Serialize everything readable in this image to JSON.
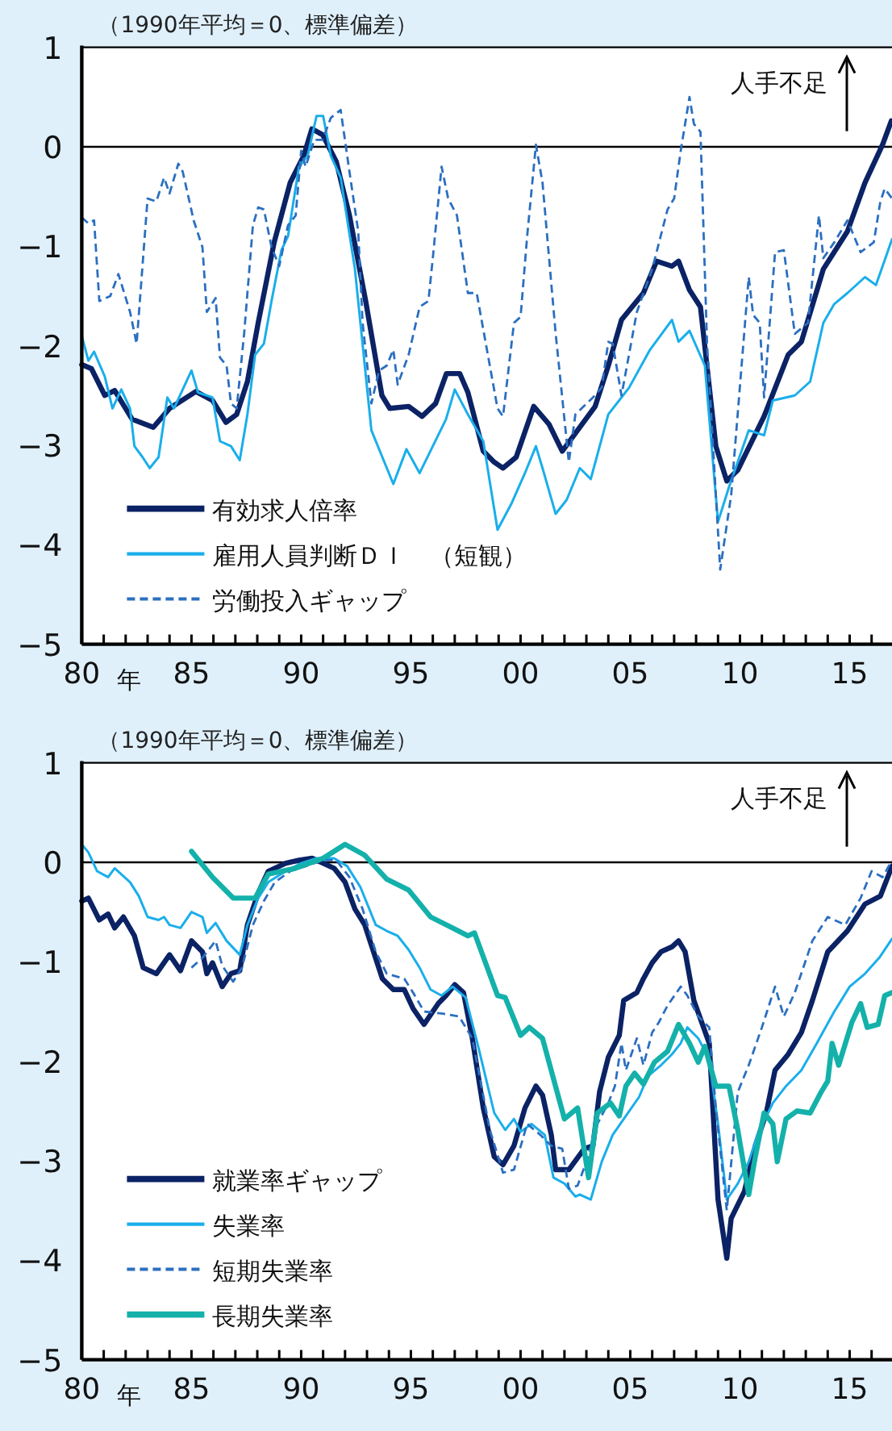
{
  "chart_data": [
    {
      "type": "line",
      "subtitle": "（1990年平均＝0、標準偏差）",
      "xlabel": "年",
      "xlim": [
        1980,
        2016.93
      ],
      "ylim": [
        -5,
        1
      ],
      "yticks": [
        -5,
        -4,
        -3,
        -2,
        -1,
        0,
        1
      ],
      "xticks": [
        {
          "value": 1980,
          "label": "80"
        },
        {
          "value": 1981,
          "label": null
        },
        {
          "value": 1982,
          "label": null
        },
        {
          "value": 1983,
          "label": null
        },
        {
          "value": 1984,
          "label": null
        },
        {
          "value": 1985,
          "label": "85"
        },
        {
          "value": 1986,
          "label": null
        },
        {
          "value": 1987,
          "label": null
        },
        {
          "value": 1988,
          "label": null
        },
        {
          "value": 1989,
          "label": null
        },
        {
          "value": 1990,
          "label": "90"
        },
        {
          "value": 1991,
          "label": null
        },
        {
          "value": 1992,
          "label": null
        },
        {
          "value": 1993,
          "label": null
        },
        {
          "value": 1994,
          "label": null
        },
        {
          "value": 1995,
          "label": "95"
        },
        {
          "value": 1996,
          "label": null
        },
        {
          "value": 1997,
          "label": null
        },
        {
          "value": 1998,
          "label": null
        },
        {
          "value": 1999,
          "label": null
        },
        {
          "value": 2000,
          "label": "00"
        },
        {
          "value": 2001,
          "label": null
        },
        {
          "value": 2002,
          "label": null
        },
        {
          "value": 2003,
          "label": null
        },
        {
          "value": 2004,
          "label": null
        },
        {
          "value": 2005,
          "label": "05"
        },
        {
          "value": 2006,
          "label": null
        },
        {
          "value": 2007,
          "label": null
        },
        {
          "value": 2008,
          "label": null
        },
        {
          "value": 2009,
          "label": null
        },
        {
          "value": 2010,
          "label": "10"
        },
        {
          "value": 2011,
          "label": null
        },
        {
          "value": 2012,
          "label": null
        },
        {
          "value": 2013,
          "label": null
        },
        {
          "value": 2014,
          "label": null
        },
        {
          "value": 2015,
          "label": "15"
        },
        {
          "value": 2016,
          "label": null
        }
      ],
      "grid": false,
      "legend": "bottom left",
      "ref_lines": [
        {
          "axis": "y",
          "value": 0,
          "color": "#000000"
        }
      ],
      "annotations": [
        "人手不足"
      ],
      "series": [
        {
          "name": "有効求人倍率",
          "color": "#0b2265",
          "line_style": "solid",
          "x": [
            1980.0,
            1980.44,
            1981.05,
            1981.5,
            1982.3,
            1983.26,
            1984.0,
            1985.2,
            1985.96,
            1986.57,
            1987.06,
            1987.55,
            1988.04,
            1988.77,
            1989.5,
            1990.12,
            1990.49,
            1990.98,
            1991.6,
            1992.2,
            1992.94,
            1993.68,
            1994.04,
            1994.9,
            1995.51,
            1996.13,
            1996.62,
            1997.23,
            1997.6,
            1998.3,
            1998.8,
            1999.2,
            1999.8,
            2000.6,
            2001.3,
            2001.9,
            2002.6,
            2003.4,
            2004.0,
            2004.6,
            2005.6,
            2006.2,
            2006.9,
            2007.2,
            2007.7,
            2008.2,
            2008.9,
            2009.4,
            2009.9,
            2011.1,
            2012.2,
            2012.8,
            2013.8,
            2014.9,
            2015.7,
            2016.5,
            2016.9
          ],
          "values": [
            -2.19,
            -2.23,
            -2.5,
            -2.45,
            -2.74,
            -2.82,
            -2.63,
            -2.46,
            -2.55,
            -2.77,
            -2.69,
            -2.36,
            -1.77,
            -0.96,
            -0.36,
            -0.09,
            0.18,
            0.12,
            -0.15,
            -0.69,
            -1.55,
            -2.5,
            -2.63,
            -2.61,
            -2.71,
            -2.58,
            -2.28,
            -2.28,
            -2.47,
            -3.06,
            -3.17,
            -3.23,
            -3.12,
            -2.61,
            -2.79,
            -3.06,
            -2.85,
            -2.61,
            -2.2,
            -1.74,
            -1.47,
            -1.15,
            -1.2,
            -1.15,
            -1.44,
            -1.61,
            -3.01,
            -3.36,
            -3.25,
            -2.71,
            -2.09,
            -1.96,
            -1.23,
            -0.85,
            -0.36,
            0.02,
            0.26
          ]
        },
        {
          "name": "雇用人員判断ＤＩ　（短観）",
          "color": "#1aaeea",
          "line_style": "solid",
          "x": [
            1980,
            1980.3,
            1980.56,
            1981.05,
            1981.4,
            1981.8,
            1982.2,
            1982.4,
            1982.77,
            1983.1,
            1983.5,
            1983.9,
            1984.2,
            1985.0,
            1985.3,
            1985.96,
            1986.3,
            1986.8,
            1987.2,
            1987.55,
            1987.9,
            1988.3,
            1988.65,
            1989.1,
            1989.4,
            1989.9,
            1990.3,
            1990.7,
            1991.0,
            1991.35,
            1991.8,
            1992.45,
            1993.2,
            1993.7,
            1994.2,
            1994.8,
            1995.4,
            1996.0,
            1996.6,
            1997.0,
            1997.6,
            1998.3,
            1998.95,
            1999.6,
            2000.2,
            2000.7,
            2001.0,
            2001.6,
            2002.1,
            2002.7,
            2003.2,
            2004.0,
            2004.95,
            2005.9,
            2006.9,
            2007.2,
            2007.7,
            2008.4,
            2009.0,
            2009.5,
            2010.4,
            2011.1,
            2011.5,
            2012.5,
            2013.2,
            2013.8,
            2014.3,
            2014.9,
            2015.7,
            2016.2,
            2016.93
          ],
          "values": [
            -1.9,
            -2.15,
            -2.06,
            -2.31,
            -2.63,
            -2.44,
            -2.63,
            -3.01,
            -3.12,
            -3.23,
            -3.12,
            -2.52,
            -2.63,
            -2.25,
            -2.47,
            -2.52,
            -2.96,
            -3.01,
            -3.15,
            -2.69,
            -2.09,
            -1.98,
            -1.55,
            -1.04,
            -0.9,
            -0.2,
            -0.09,
            0.31,
            0.31,
            -0.09,
            -0.31,
            -1.23,
            -2.85,
            -3.12,
            -3.39,
            -3.04,
            -3.28,
            -3.01,
            -2.74,
            -2.44,
            -2.69,
            -2.96,
            -3.85,
            -3.58,
            -3.28,
            -3.01,
            -3.23,
            -3.69,
            -3.55,
            -3.23,
            -3.34,
            -2.69,
            -2.42,
            -2.04,
            -1.74,
            -1.96,
            -1.85,
            -2.2,
            -3.77,
            -3.42,
            -2.85,
            -2.9,
            -2.55,
            -2.5,
            -2.36,
            -1.77,
            -1.58,
            -1.47,
            -1.31,
            -1.39,
            -0.93
          ]
        },
        {
          "name": "労働投入ギャップ",
          "color": "#2b6fc0",
          "line_style": "dashed",
          "x": [
            1980,
            1980.3,
            1980.56,
            1980.8,
            1981.3,
            1981.67,
            1982.2,
            1982.5,
            1983.0,
            1983.4,
            1983.75,
            1984.0,
            1984.4,
            1984.6,
            1985.1,
            1985.5,
            1985.7,
            1986.1,
            1986.3,
            1986.6,
            1986.8,
            1987.06,
            1987.4,
            1987.8,
            1988.04,
            1988.3,
            1988.65,
            1989.0,
            1989.4,
            1989.75,
            1990.0,
            1990.2,
            1990.6,
            1990.98,
            1991.35,
            1991.8,
            1992.2,
            1992.6,
            1992.8,
            1993.2,
            1993.55,
            1993.9,
            1994.2,
            1994.4,
            1994.9,
            1995.4,
            1995.8,
            1996.0,
            1996.4,
            1996.7,
            1997.1,
            1997.6,
            1998.0,
            1998.95,
            1999.2,
            1999.7,
            2000.0,
            2000.3,
            2000.7,
            2001.0,
            2001.6,
            2002.2,
            2002.5,
            2003.3,
            2003.7,
            2004.0,
            2004.2,
            2004.6,
            2005.3,
            2006.0,
            2006.7,
            2007.0,
            2007.3,
            2007.7,
            2007.9,
            2008.2,
            2008.5,
            2009.1,
            2009.6,
            2010.4,
            2010.6,
            2010.9,
            2011.1,
            2011.6,
            2012.0,
            2012.5,
            2013.1,
            2013.6,
            2013.8,
            2014.3,
            2014.9,
            2015.5,
            2016.1,
            2016.4,
            2016.6,
            2016.93
          ],
          "values": [
            -0.71,
            -0.77,
            -0.74,
            -1.55,
            -1.5,
            -1.28,
            -1.66,
            -1.98,
            -0.52,
            -0.55,
            -0.31,
            -0.47,
            -0.17,
            -0.25,
            -0.74,
            -1.01,
            -1.66,
            -1.52,
            -2.12,
            -2.2,
            -2.58,
            -2.63,
            -1.88,
            -0.79,
            -0.61,
            -0.63,
            -1.01,
            -1.2,
            -0.79,
            -0.69,
            -0.04,
            -0.2,
            0.07,
            0.07,
            0.29,
            0.37,
            -0.25,
            -0.85,
            -1.77,
            -2.58,
            -2.25,
            -2.2,
            -2.04,
            -2.39,
            -2.09,
            -1.61,
            -1.55,
            -1.12,
            -0.2,
            -0.52,
            -0.69,
            -1.47,
            -1.47,
            -2.63,
            -2.71,
            -1.77,
            -1.71,
            -0.9,
            0.02,
            -0.36,
            -1.88,
            -3.17,
            -2.69,
            -2.52,
            -2.42,
            -1.96,
            -1.98,
            -2.5,
            -1.66,
            -1.23,
            -0.63,
            -0.52,
            -0.04,
            0.5,
            0.23,
            0.15,
            -1.98,
            -4.25,
            -3.5,
            -1.31,
            -1.69,
            -1.77,
            -2.52,
            -1.06,
            -1.04,
            -1.88,
            -1.77,
            -0.69,
            -1.12,
            -0.96,
            -0.74,
            -1.06,
            -0.96,
            -0.55,
            -0.42,
            -0.52
          ]
        }
      ]
    },
    {
      "type": "line",
      "subtitle": "（1990年平均＝0、標準偏差）",
      "xlabel": "年",
      "xlim": [
        1980,
        2016.93
      ],
      "ylim": [
        -5,
        1
      ],
      "yticks": [
        -5,
        -4,
        -3,
        -2,
        -1,
        0,
        1
      ],
      "xticks": [
        {
          "value": 1980,
          "label": "80"
        },
        {
          "value": 1981,
          "label": null
        },
        {
          "value": 1982,
          "label": null
        },
        {
          "value": 1983,
          "label": null
        },
        {
          "value": 1984,
          "label": null
        },
        {
          "value": 1985,
          "label": "85"
        },
        {
          "value": 1986,
          "label": null
        },
        {
          "value": 1987,
          "label": null
        },
        {
          "value": 1988,
          "label": null
        },
        {
          "value": 1989,
          "label": null
        },
        {
          "value": 1990,
          "label": "90"
        },
        {
          "value": 1991,
          "label": null
        },
        {
          "value": 1992,
          "label": null
        },
        {
          "value": 1993,
          "label": null
        },
        {
          "value": 1994,
          "label": null
        },
        {
          "value": 1995,
          "label": "95"
        },
        {
          "value": 1996,
          "label": null
        },
        {
          "value": 1997,
          "label": null
        },
        {
          "value": 1998,
          "label": null
        },
        {
          "value": 1999,
          "label": null
        },
        {
          "value": 2000,
          "label": "00"
        },
        {
          "value": 2001,
          "label": null
        },
        {
          "value": 2002,
          "label": null
        },
        {
          "value": 2003,
          "label": null
        },
        {
          "value": 2004,
          "label": null
        },
        {
          "value": 2005,
          "label": "05"
        },
        {
          "value": 2006,
          "label": null
        },
        {
          "value": 2007,
          "label": null
        },
        {
          "value": 2008,
          "label": null
        },
        {
          "value": 2009,
          "label": null
        },
        {
          "value": 2010,
          "label": "10"
        },
        {
          "value": 2011,
          "label": null
        },
        {
          "value": 2012,
          "label": null
        },
        {
          "value": 2013,
          "label": null
        },
        {
          "value": 2014,
          "label": null
        },
        {
          "value": 2015,
          "label": "15"
        },
        {
          "value": 2016,
          "label": null
        }
      ],
      "grid": false,
      "legend": "bottom left",
      "ref_lines": [
        {
          "axis": "y",
          "value": 0,
          "color": "#000000"
        }
      ],
      "annotations": [
        "人手不足"
      ],
      "series": [
        {
          "name": "就業率ギャップ",
          "color": "#0b2265",
          "line_style": "solid",
          "x": [
            1980,
            1980.3,
            1980.8,
            1981.2,
            1981.5,
            1981.9,
            1982.4,
            1982.8,
            1983.4,
            1984.0,
            1984.5,
            1985.0,
            1985.5,
            1985.7,
            1985.96,
            1986.4,
            1986.8,
            1987.2,
            1987.55,
            1988.04,
            1988.5,
            1989.3,
            1989.9,
            1990.5,
            1991.0,
            1991.5,
            1992.0,
            1992.45,
            1992.9,
            1993.3,
            1993.7,
            1994.2,
            1994.7,
            1995.1,
            1995.6,
            1996.25,
            1996.6,
            1997.0,
            1997.4,
            1997.8,
            1998.3,
            1998.8,
            1999.2,
            1999.7,
            2000.2,
            2000.7,
            2001.0,
            2001.4,
            2001.6,
            2002.2,
            2002.9,
            2003.3,
            2003.6,
            2004.0,
            2004.5,
            2004.7,
            2005.3,
            2005.6,
            2006.0,
            2006.4,
            2006.9,
            2007.2,
            2007.5,
            2007.9,
            2008.6,
            2009.0,
            2009.4,
            2009.6,
            2010.2,
            2010.7,
            2011.2,
            2011.6,
            2012.2,
            2012.8,
            2013.3,
            2014.0,
            2014.9,
            2015.7,
            2016.4,
            2016.93
          ],
          "values": [
            -0.39,
            -0.36,
            -0.58,
            -0.52,
            -0.66,
            -0.55,
            -0.74,
            -1.06,
            -1.12,
            -0.93,
            -1.09,
            -0.79,
            -0.9,
            -1.12,
            -1.01,
            -1.25,
            -1.12,
            -1.09,
            -0.63,
            -0.31,
            -0.09,
            -0.01,
            0.02,
            0.04,
            -0.01,
            -0.06,
            -0.2,
            -0.47,
            -0.63,
            -0.9,
            -1.17,
            -1.28,
            -1.28,
            -1.47,
            -1.63,
            -1.42,
            -1.34,
            -1.23,
            -1.31,
            -1.77,
            -2.47,
            -2.96,
            -3.04,
            -2.85,
            -2.47,
            -2.25,
            -2.34,
            -2.74,
            -3.09,
            -3.09,
            -2.88,
            -2.85,
            -2.31,
            -1.96,
            -1.74,
            -1.39,
            -1.31,
            -1.17,
            -1.01,
            -0.9,
            -0.85,
            -0.79,
            -0.9,
            -1.39,
            -1.82,
            -3.39,
            -3.98,
            -3.58,
            -3.31,
            -2.85,
            -2.52,
            -2.09,
            -1.93,
            -1.71,
            -1.39,
            -0.9,
            -0.69,
            -0.42,
            -0.34,
            -0.04
          ]
        },
        {
          "name": "失業率",
          "color": "#1aaeea",
          "line_style": "solid",
          "x": [
            1980,
            1980.3,
            1980.7,
            1981.2,
            1981.5,
            1982.2,
            1982.6,
            1983.0,
            1983.5,
            1983.75,
            1984.0,
            1984.5,
            1985.0,
            1985.5,
            1985.7,
            1986.1,
            1986.6,
            1987.2,
            1987.55,
            1988.04,
            1988.5,
            1989.3,
            1990.0,
            1990.7,
            1991.5,
            1992.1,
            1992.7,
            1993.4,
            1993.9,
            1994.4,
            1994.9,
            1995.4,
            1995.9,
            1996.4,
            1996.9,
            1997.5,
            1998.1,
            1998.8,
            1999.3,
            1999.7,
            2000.0,
            2000.5,
            2001.1,
            2001.5,
            2002.0,
            2002.5,
            2002.7,
            2003.2,
            2003.7,
            2004.2,
            2004.8,
            2005.4,
            2005.8,
            2006.4,
            2006.9,
            2007.3,
            2007.6,
            2008.1,
            2008.6,
            2009.0,
            2009.4,
            2009.9,
            2010.4,
            2010.8,
            2011.5,
            2012.1,
            2012.8,
            2013.5,
            2014.3,
            2015.0,
            2015.7,
            2016.35,
            2016.93
          ],
          "values": [
            0.18,
            0.1,
            -0.09,
            -0.15,
            -0.06,
            -0.2,
            -0.34,
            -0.55,
            -0.58,
            -0.55,
            -0.63,
            -0.66,
            -0.5,
            -0.55,
            -0.71,
            -0.61,
            -0.79,
            -0.93,
            -0.63,
            -0.36,
            -0.2,
            -0.09,
            -0.01,
            0.04,
            0.04,
            -0.04,
            -0.25,
            -0.63,
            -0.69,
            -0.74,
            -0.88,
            -1.06,
            -1.28,
            -1.34,
            -1.25,
            -1.36,
            -1.88,
            -2.52,
            -2.69,
            -2.58,
            -2.71,
            -2.63,
            -2.74,
            -3.17,
            -3.23,
            -3.36,
            -3.34,
            -3.39,
            -3.01,
            -2.74,
            -2.55,
            -2.36,
            -2.15,
            -2.04,
            -1.93,
            -1.82,
            -1.66,
            -1.77,
            -1.98,
            -2.63,
            -3.39,
            -3.23,
            -3.01,
            -2.74,
            -2.42,
            -2.25,
            -2.09,
            -1.82,
            -1.5,
            -1.25,
            -1.12,
            -0.96,
            -0.77
          ]
        },
        {
          "name": "短期失業率",
          "color": "#2b6fc0",
          "line_style": "dashed",
          "x": [
            1985.0,
            1985.5,
            1986.1,
            1986.4,
            1986.9,
            1987.3,
            1987.8,
            1988.3,
            1988.8,
            1989.5,
            1990.2,
            1991.0,
            1991.6,
            1992.2,
            1992.8,
            1993.4,
            1993.9,
            1994.7,
            1995.1,
            1995.6,
            1996.4,
            1997.2,
            1997.8,
            1998.6,
            1999.2,
            1999.7,
            2000.3,
            2000.9,
            2001.4,
            2001.9,
            2002.2,
            2002.6,
            2003.0,
            2003.5,
            2004.0,
            2004.3,
            2004.6,
            2004.8,
            2005.3,
            2005.6,
            2006.0,
            2006.3,
            2006.7,
            2007.3,
            2007.6,
            2008.1,
            2008.6,
            2008.9,
            2009.4,
            2009.9,
            2010.4,
            2011.0,
            2011.6,
            2012.0,
            2012.5,
            2013.3,
            2014.0,
            2014.8,
            2015.5,
            2016.0,
            2016.5,
            2016.93
          ],
          "values": [
            -1.06,
            -0.96,
            -0.79,
            -1.04,
            -1.2,
            -1.06,
            -0.63,
            -0.39,
            -0.2,
            -0.09,
            -0.04,
            0.02,
            0.02,
            -0.15,
            -0.47,
            -0.9,
            -1.12,
            -1.17,
            -1.31,
            -1.5,
            -1.52,
            -1.55,
            -1.77,
            -2.69,
            -3.12,
            -3.09,
            -2.63,
            -2.74,
            -2.85,
            -2.88,
            -3.28,
            -3.25,
            -3.01,
            -2.63,
            -2.42,
            -2.25,
            -1.82,
            -2.09,
            -1.77,
            -2.04,
            -1.71,
            -1.61,
            -1.44,
            -1.25,
            -1.34,
            -1.55,
            -1.66,
            -2.47,
            -3.5,
            -2.31,
            -2.04,
            -1.66,
            -1.25,
            -1.55,
            -1.31,
            -0.79,
            -0.55,
            -0.63,
            -0.36,
            -0.09,
            -0.15,
            0.02
          ]
        },
        {
          "name": "長期失業率",
          "color": "#14b1aa",
          "line_style": "solid",
          "x": [
            1985.0,
            1985.96,
            1986.9,
            1987.9,
            1988.5,
            1989.75,
            1991.0,
            1992.0,
            1992.9,
            1993.9,
            1994.9,
            1995.9,
            1996.9,
            1997.6,
            1997.9,
            1998.95,
            1999.3,
            2000.0,
            2000.4,
            2001.0,
            2002.0,
            2002.6,
            2003.1,
            2003.5,
            2004.1,
            2004.5,
            2004.8,
            2005.2,
            2005.6,
            2006.1,
            2006.7,
            2007.2,
            2007.7,
            2008.1,
            2008.4,
            2008.9,
            2009.5,
            2009.9,
            2010.4,
            2010.7,
            2011.1,
            2011.5,
            2011.7,
            2012.1,
            2012.6,
            2013.2,
            2013.7,
            2014.0,
            2014.2,
            2014.5,
            2015.1,
            2015.5,
            2015.8,
            2016.3,
            2016.6,
            2016.93
          ],
          "values": [
            0.11,
            -0.15,
            -0.36,
            -0.36,
            -0.12,
            -0.06,
            0.04,
            0.18,
            0.07,
            -0.17,
            -0.28,
            -0.55,
            -0.66,
            -0.74,
            -0.71,
            -1.34,
            -1.36,
            -1.74,
            -1.66,
            -1.77,
            -2.58,
            -2.47,
            -3.17,
            -2.52,
            -2.42,
            -2.55,
            -2.25,
            -2.12,
            -2.23,
            -2.01,
            -1.9,
            -1.63,
            -1.82,
            -2.01,
            -1.85,
            -2.25,
            -2.25,
            -2.69,
            -3.34,
            -2.96,
            -2.52,
            -2.63,
            -3.01,
            -2.58,
            -2.5,
            -2.52,
            -2.31,
            -2.2,
            -1.82,
            -2.04,
            -1.61,
            -1.42,
            -1.66,
            -1.63,
            -1.34,
            -1.31
          ]
        }
      ]
    }
  ]
}
